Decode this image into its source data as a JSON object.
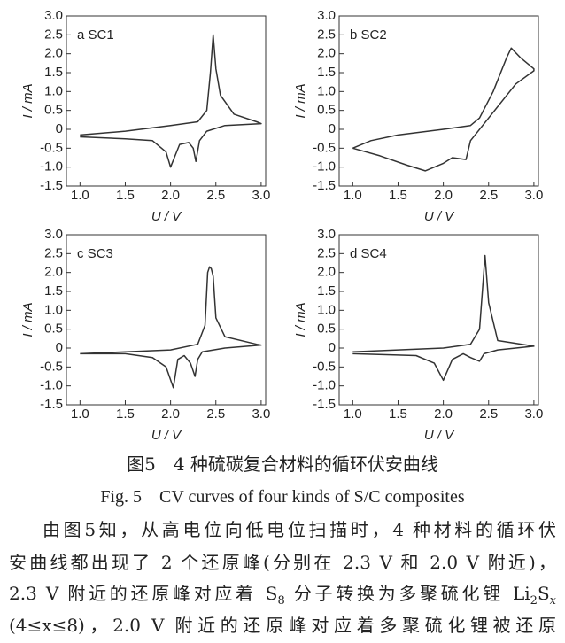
{
  "chart_data": [
    {
      "type": "line",
      "label": "a SC1",
      "xlabel": "U / V",
      "ylabel": "I / mA",
      "xlim": [
        0.85,
        3.05
      ],
      "ylim": [
        -1.5,
        3.0
      ],
      "xticks": [
        {
          "value": 1,
          "label": "1.0"
        },
        1.5,
        {
          "value": 2,
          "label": "2.0"
        },
        2.5,
        {
          "value": 3,
          "label": "3.0"
        }
      ],
      "yticks": [
        -1.5,
        {
          "value": -1,
          "label": "-1.0"
        },
        -0.5,
        0,
        0.5,
        {
          "value": 1,
          "label": "1.0"
        },
        1.5,
        {
          "value": 2,
          "label": "2.0"
        },
        2.5,
        {
          "value": 3,
          "label": "3.0"
        }
      ],
      "x": [
        1.0,
        1.5,
        2.0,
        2.3,
        2.4,
        2.44,
        2.47,
        2.5,
        2.55,
        2.7,
        2.95,
        3.0,
        2.6,
        2.4,
        2.32,
        2.28,
        2.25,
        2.2,
        2.1,
        2.05,
        2.0,
        1.95,
        1.8,
        1.5,
        1.0
      ],
      "series": [
        {
          "color": "#333333",
          "values": [
            -0.15,
            -0.05,
            0.1,
            0.2,
            0.5,
            1.5,
            2.5,
            1.6,
            0.9,
            0.4,
            0.2,
            0.15,
            0.1,
            -0.05,
            -0.3,
            -0.85,
            -0.5,
            -0.35,
            -0.4,
            -0.7,
            -1.0,
            -0.6,
            -0.3,
            -0.25,
            -0.2
          ]
        }
      ]
    },
    {
      "type": "line",
      "label": "b SC2",
      "xlabel": "U / V",
      "ylabel": "I / mA",
      "xlim": [
        0.85,
        3.05
      ],
      "ylim": [
        -1.5,
        3.0
      ],
      "xticks": [
        {
          "value": 1,
          "label": "1.0"
        },
        1.5,
        {
          "value": 2,
          "label": "2.0"
        },
        2.5,
        {
          "value": 3,
          "label": "3.0"
        }
      ],
      "yticks": [
        -1.5,
        {
          "value": -1,
          "label": "-1.0"
        },
        -0.5,
        0,
        0.5,
        {
          "value": 1,
          "label": "1.0"
        },
        1.5,
        {
          "value": 2,
          "label": "2.0"
        },
        2.5,
        {
          "value": 3,
          "label": "3.0"
        }
      ],
      "x": [
        1.0,
        1.2,
        1.5,
        2.0,
        2.3,
        2.4,
        2.55,
        2.7,
        2.75,
        2.85,
        3.0,
        3.0,
        2.8,
        2.5,
        2.3,
        2.25,
        2.1,
        2.0,
        1.8,
        1.6,
        1.3,
        1.0
      ],
      "series": [
        {
          "color": "#333333",
          "values": [
            -0.5,
            -0.3,
            -0.15,
            0.0,
            0.1,
            0.3,
            1.0,
            1.9,
            2.15,
            1.9,
            1.6,
            1.55,
            1.2,
            0.3,
            -0.3,
            -0.8,
            -0.75,
            -0.9,
            -1.1,
            -0.95,
            -0.7,
            -0.5
          ]
        }
      ]
    },
    {
      "type": "line",
      "label": "c SC3",
      "xlabel": "U / V",
      "ylabel": "I / mA",
      "xlim": [
        0.85,
        3.05
      ],
      "ylim": [
        -1.5,
        3.0
      ],
      "xticks": [
        {
          "value": 1,
          "label": "1.0"
        },
        1.5,
        {
          "value": 2,
          "label": "2.0"
        },
        2.5,
        {
          "value": 3,
          "label": "3.0"
        }
      ],
      "yticks": [
        -1.5,
        {
          "value": -1,
          "label": "-1.0"
        },
        -0.5,
        0,
        0.5,
        {
          "value": 1,
          "label": "1.0"
        },
        1.5,
        {
          "value": 2,
          "label": "2.0"
        },
        2.5,
        {
          "value": 3,
          "label": "3.0"
        }
      ],
      "x": [
        1.0,
        2.0,
        2.3,
        2.38,
        2.41,
        2.43,
        2.45,
        2.47,
        2.5,
        2.6,
        2.95,
        3.0,
        2.6,
        2.35,
        2.3,
        2.27,
        2.22,
        2.15,
        2.08,
        2.03,
        1.95,
        1.8,
        1.5,
        1.0
      ],
      "series": [
        {
          "color": "#333333",
          "values": [
            -0.15,
            -0.05,
            0.1,
            0.6,
            2.0,
            2.15,
            2.1,
            1.9,
            0.8,
            0.3,
            0.1,
            0.08,
            0.0,
            -0.1,
            -0.3,
            -0.75,
            -0.4,
            -0.2,
            -0.3,
            -1.05,
            -0.5,
            -0.25,
            -0.15,
            -0.15
          ]
        }
      ]
    },
    {
      "type": "line",
      "label": "d SC4",
      "xlabel": "U / V",
      "ylabel": "I / mA",
      "xlim": [
        0.85,
        3.05
      ],
      "ylim": [
        -1.5,
        3.0
      ],
      "xticks": [
        {
          "value": 1,
          "label": "1.0"
        },
        1.5,
        {
          "value": 2,
          "label": "2.0"
        },
        2.5,
        {
          "value": 3,
          "label": "3.0"
        }
      ],
      "yticks": [
        -1.5,
        {
          "value": -1,
          "label": "-1.0"
        },
        -0.5,
        0,
        0.5,
        {
          "value": 1,
          "label": "1.0"
        },
        1.5,
        {
          "value": 2,
          "label": "2.0"
        },
        2.5,
        {
          "value": 3,
          "label": "3.0"
        }
      ],
      "x": [
        1.0,
        2.0,
        2.3,
        2.4,
        2.46,
        2.5,
        2.6,
        3.0,
        2.6,
        2.45,
        2.4,
        2.3,
        2.22,
        2.1,
        2.0,
        1.9,
        1.7,
        1.0
      ],
      "series": [
        {
          "color": "#333333",
          "values": [
            -0.1,
            0.0,
            0.1,
            0.5,
            2.45,
            1.2,
            0.2,
            0.05,
            -0.05,
            -0.15,
            -0.35,
            -0.25,
            -0.15,
            -0.3,
            -0.85,
            -0.4,
            -0.2,
            -0.15
          ]
        }
      ]
    }
  ],
  "caption": {
    "zh": "图5　4 种硫碳复合材料的循环伏安曲线",
    "en": "Fig. 5　CV curves of four kinds of S/C composites"
  },
  "paragraph": [
    [
      "由图5知，从高电位向低电位扫描时，4 种材料的循环伏"
    ],
    [
      "安曲线都出现了 2 个还原峰(分别在 2.3 V 和 2.0 V 附近)，"
    ],
    [
      "2.3 V 附近的还原峰对应着 S",
      "8",
      " 分子转换为多聚硫化锂 Li",
      "2",
      "S",
      "x"
    ],
    [
      "(4≤x≤8)，2.0 V 附近的还原峰对应着多聚硫化锂被还原"
    ]
  ]
}
